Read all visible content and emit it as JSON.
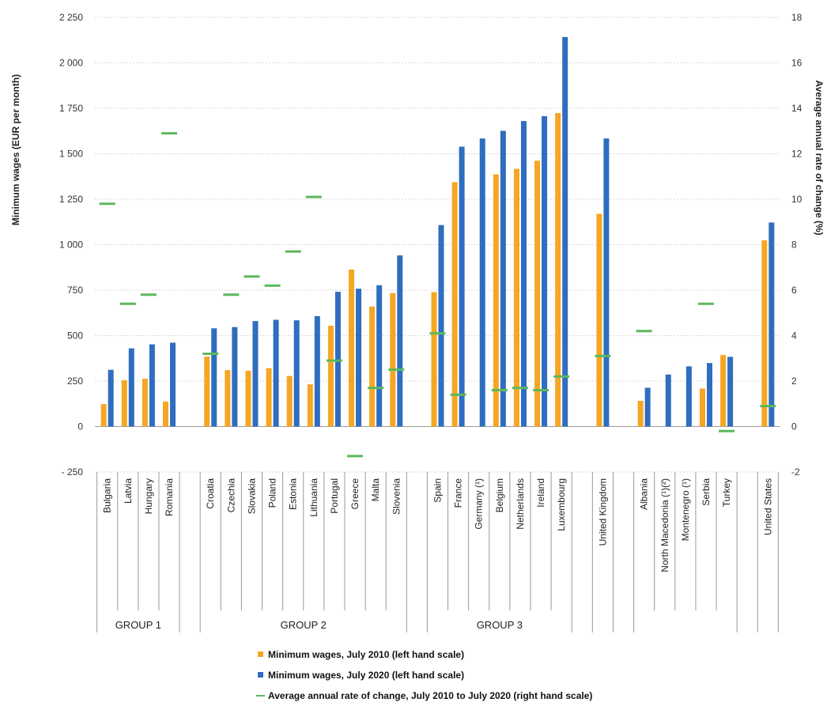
{
  "chart_data": {
    "type": "bar",
    "ylabel": "Minimum wages (EUR per month)",
    "y2label": "Average annual rate of change (%)",
    "ylim": [
      -250,
      2250
    ],
    "y2lim": [
      -2,
      18
    ],
    "yticks": [
      {
        "v": 2250,
        "label": "2 250"
      },
      {
        "v": 2000,
        "label": "2 000"
      },
      {
        "v": 1750,
        "label": "1 750"
      },
      {
        "v": 1500,
        "label": "1 500"
      },
      {
        "v": 1250,
        "label": "1 250"
      },
      {
        "v": 1000,
        "label": "1 000"
      },
      {
        "v": 750,
        "label": "750"
      },
      {
        "v": 500,
        "label": "500"
      },
      {
        "v": 250,
        "label": "250"
      },
      {
        "v": 0,
        "label": "0"
      },
      {
        "v": -250,
        "label": "- 250"
      }
    ],
    "y2ticks": [
      {
        "v": 18,
        "label": "18"
      },
      {
        "v": 16,
        "label": "16"
      },
      {
        "v": 14,
        "label": "14"
      },
      {
        "v": 12,
        "label": "12"
      },
      {
        "v": 10,
        "label": "10"
      },
      {
        "v": 8,
        "label": "8"
      },
      {
        "v": 6,
        "label": "6"
      },
      {
        "v": 4,
        "label": "4"
      },
      {
        "v": 2,
        "label": "2"
      },
      {
        "v": 0,
        "label": "0"
      },
      {
        "v": -2,
        "label": "-2"
      }
    ],
    "grid": true,
    "legend_position": "bottom",
    "colors": {
      "wages_2010": "#f5a623",
      "wages_2020": "#2e6dbf",
      "rate": "#5cb85c"
    },
    "series_names": [
      "Minimum wages, July 2010 (left hand scale)",
      "Minimum wages, July 2020 (left hand scale)",
      "Average annual rate of change, July 2010 to July 2020 (right hand scale)"
    ],
    "groups": [
      {
        "label": "GROUP 1",
        "countries": [
          {
            "name": "Bulgaria",
            "w2010": 123,
            "w2020": 312,
            "rate": 9.8
          },
          {
            "name": "Latvia",
            "w2010": 254,
            "w2020": 430,
            "rate": 5.4
          },
          {
            "name": "Hungary",
            "w2010": 263,
            "w2020": 452,
            "rate": 5.8
          },
          {
            "name": "Romania",
            "w2010": 137,
            "w2020": 461,
            "rate": 12.9
          }
        ]
      },
      {
        "label": "GROUP 2",
        "countries": [
          {
            "name": "Croatia",
            "w2010": 385,
            "w2020": 540,
            "rate": 3.2
          },
          {
            "name": "Czechia",
            "w2010": 310,
            "w2020": 547,
            "rate": 5.8
          },
          {
            "name": "Slovakia",
            "w2010": 307,
            "w2020": 580,
            "rate": 6.6
          },
          {
            "name": "Poland",
            "w2010": 321,
            "w2020": 587,
            "rate": 6.2
          },
          {
            "name": "Estonia",
            "w2010": 278,
            "w2020": 584,
            "rate": 7.7
          },
          {
            "name": "Lithuania",
            "w2010": 232,
            "w2020": 607,
            "rate": 10.1
          },
          {
            "name": "Portugal",
            "w2010": 554,
            "w2020": 741,
            "rate": 2.9
          },
          {
            "name": "Greece",
            "w2010": 863,
            "w2020": 758,
            "rate": -1.3
          },
          {
            "name": "Malta",
            "w2010": 660,
            "w2020": 777,
            "rate": 1.7
          },
          {
            "name": "Slovenia",
            "w2010": 734,
            "w2020": 941,
            "rate": 2.5
          }
        ]
      },
      {
        "label": "GROUP 3",
        "countries": [
          {
            "name": "Spain",
            "w2010": 739,
            "w2020": 1108,
            "rate": 4.1
          },
          {
            "name": "France",
            "w2010": 1344,
            "w2020": 1539,
            "rate": 1.4
          },
          {
            "name": "Germany (¹)",
            "w2010": null,
            "w2020": 1584,
            "rate": null
          },
          {
            "name": "Belgium",
            "w2010": 1387,
            "w2020": 1626,
            "rate": 1.6
          },
          {
            "name": "Netherlands",
            "w2010": 1417,
            "w2020": 1680,
            "rate": 1.7
          },
          {
            "name": "Ireland",
            "w2010": 1462,
            "w2020": 1707,
            "rate": 1.6
          },
          {
            "name": "Luxembourg",
            "w2010": 1724,
            "w2020": 2142,
            "rate": 2.2
          }
        ]
      },
      {
        "label": "",
        "countries": [
          {
            "name": "United Kingdom",
            "w2010": 1170,
            "w2020": 1584,
            "rate": 3.1
          }
        ]
      },
      {
        "label": "",
        "countries": [
          {
            "name": "Albania",
            "w2010": 141,
            "w2020": 213,
            "rate": 4.2
          },
          {
            "name": "North Macedonia (¹)(²)",
            "w2010": null,
            "w2020": 286,
            "rate": null
          },
          {
            "name": "Montenegro (¹)",
            "w2010": null,
            "w2020": 331,
            "rate": null
          },
          {
            "name": "Serbia",
            "w2010": 209,
            "w2020": 349,
            "rate": 5.4
          },
          {
            "name": "Turkey",
            "w2010": 393,
            "w2020": 383,
            "rate": -0.2
          }
        ]
      },
      {
        "label": "",
        "countries": [
          {
            "name": "United States",
            "w2010": 1024,
            "w2020": 1122,
            "rate": 0.9
          }
        ]
      }
    ]
  }
}
